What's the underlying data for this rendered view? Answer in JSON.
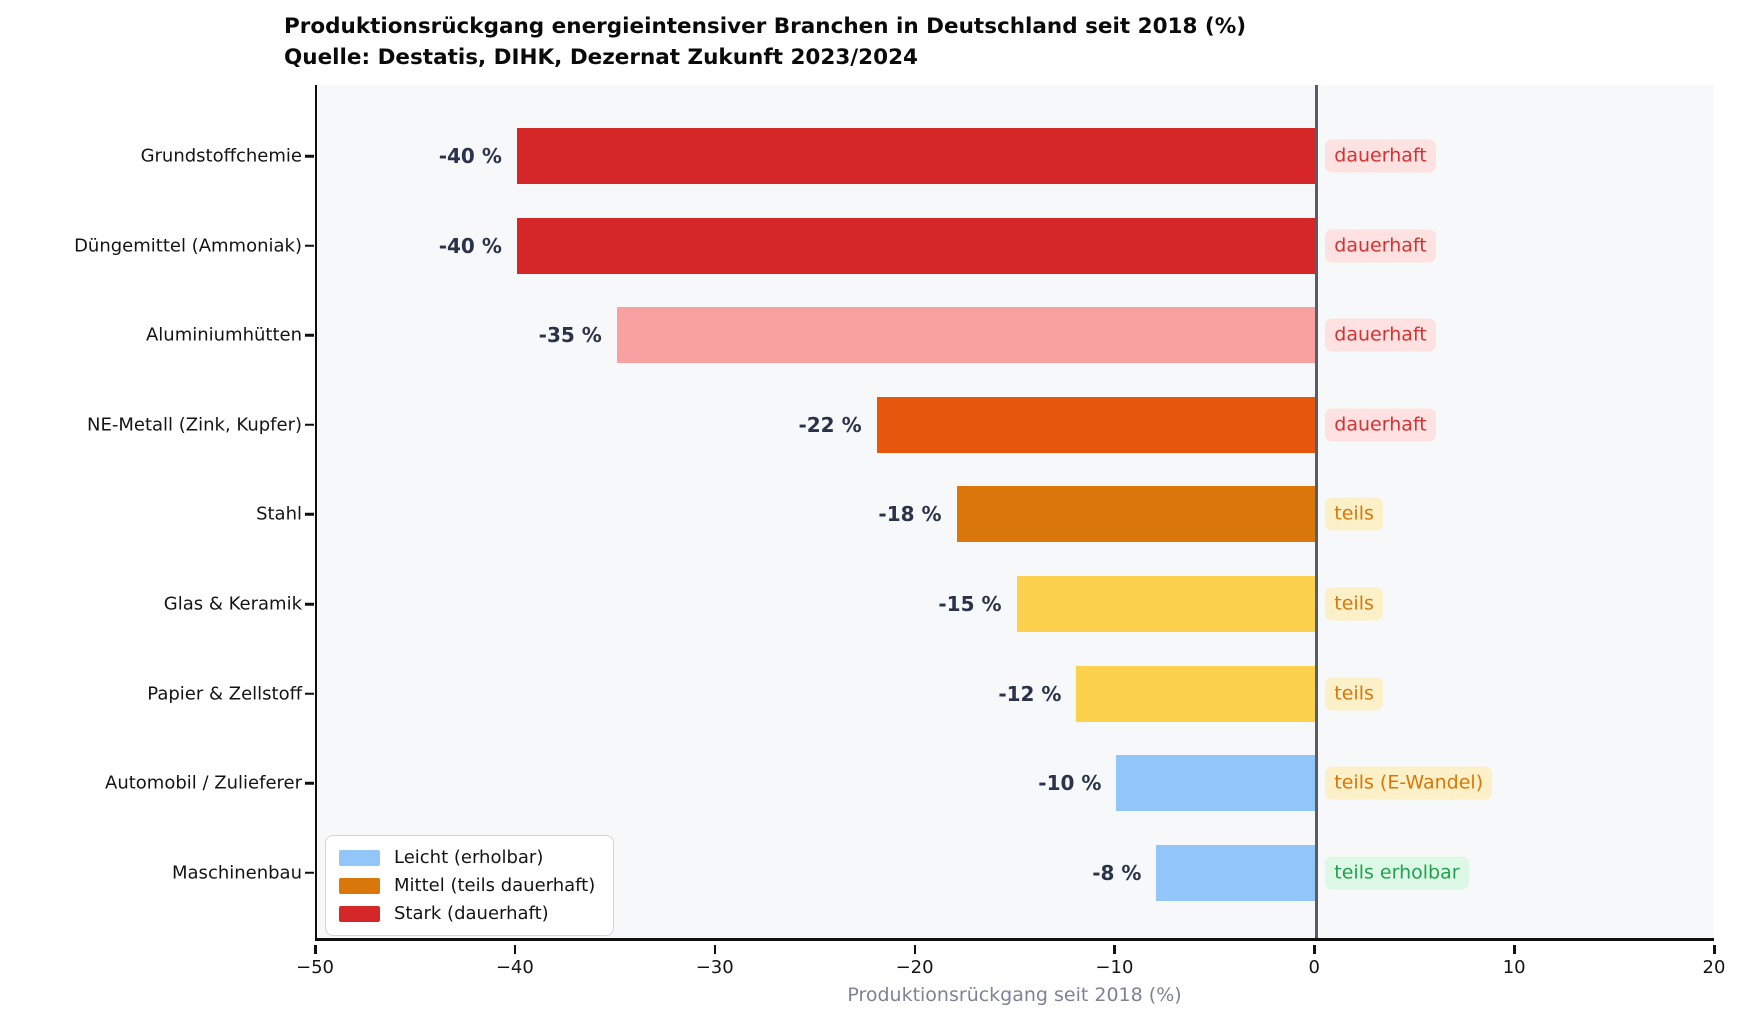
{
  "title": {
    "line1": "Produktionsrückgang energieintensiver Branchen in Deutschland seit 2018 (%)",
    "line2": "Quelle: Destatis, DIHK, Dezernat Zukunft 2023/2024"
  },
  "chart_data": {
    "type": "bar",
    "orientation": "horizontal",
    "title": "Produktionsrückgang energieintensiver Branchen in Deutschland seit 2018 (%)",
    "subtitle": "Quelle: Destatis, DIHK, Dezernat Zukunft 2023/2024",
    "xlabel": "Produktionsrückgang seit 2018 (%)",
    "xlim": [
      -50,
      20
    ],
    "grid": false,
    "plot_background": "#f7f8fa",
    "categories": [
      "Grundstoffchemie",
      "Düngemittel (Ammoniak)",
      "Aluminiumhütten",
      "NE-Metall (Zink, Kupfer)",
      "Stahl",
      "Glas & Keramik",
      "Papier & Zellstoff",
      "Automobil / Zulieferer",
      "Maschinenbau"
    ],
    "values": [
      -40,
      -40,
      -35,
      -22,
      -18,
      -15,
      -12,
      -10,
      -8
    ],
    "value_labels": [
      "-40 %",
      "-40 %",
      "-35 %",
      "-22 %",
      "-18 %",
      "-15 %",
      "-12 %",
      "-10 %",
      "-8 %"
    ],
    "bar_colors": [
      "#d62728",
      "#d62728",
      "#f7a2a0",
      "#e6560d",
      "#d9770a",
      "#fcd14d",
      "#fcd14d",
      "#92c5f8",
      "#92c5f8"
    ],
    "annotations": [
      {
        "text": "dauerhaft",
        "color": "#d93030",
        "bg": "#fde2e1"
      },
      {
        "text": "dauerhaft",
        "color": "#d93030",
        "bg": "#fde2e1"
      },
      {
        "text": "dauerhaft",
        "color": "#d93030",
        "bg": "#fde2e1"
      },
      {
        "text": "dauerhaft",
        "color": "#d93030",
        "bg": "#fde2e1"
      },
      {
        "text": "teils",
        "color": "#d97706",
        "bg": "#fcf0c8"
      },
      {
        "text": "teils",
        "color": "#d97706",
        "bg": "#fcf0c8"
      },
      {
        "text": "teils",
        "color": "#d97706",
        "bg": "#fcf0c8"
      },
      {
        "text": "teils (E-Wandel)",
        "color": "#d97706",
        "bg": "#fcf0c8"
      },
      {
        "text": "teils erholbar",
        "color": "#1fa24e",
        "bg": "#def8e6"
      }
    ],
    "x_ticks": {
      "values": [
        -50,
        -40,
        -30,
        -20,
        -10,
        0,
        10,
        20
      ],
      "labels": [
        "−50",
        "−40",
        "−30",
        "−20",
        "−10",
        "0",
        "10",
        "20"
      ]
    },
    "legend": {
      "position": "lower left",
      "items": [
        {
          "label": "Leicht (erholbar)",
          "color": "#92c5f8"
        },
        {
          "label": "Mittel (teils dauerhaft)",
          "color": "#d9770a"
        },
        {
          "label": "Stark (dauerhaft)",
          "color": "#d62728"
        }
      ]
    },
    "zero_line_color": "#565d66",
    "value_label_color": "#2a3349",
    "axis_label_color": "#7c8493"
  }
}
